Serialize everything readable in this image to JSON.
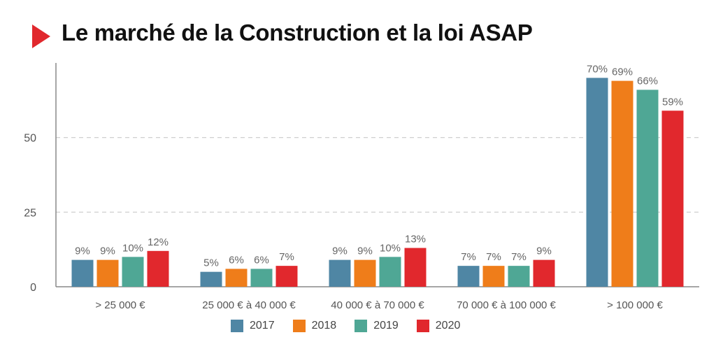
{
  "title": "Le marché de la Construction et la loi ASAP",
  "chart_data": {
    "type": "bar",
    "title": "Le marché de la Construction et la loi ASAP",
    "xlabel": "",
    "ylabel": "",
    "ylim": [
      0,
      75
    ],
    "yticks": [
      0,
      25,
      50
    ],
    "grid": true,
    "legend_position": "bottom",
    "categories": [
      "> 25 000 €",
      "25 000 € à 40 000 €",
      "40 000 € à 70 000 €",
      "70 000 € à 100 000 €",
      "> 100 000 €"
    ],
    "series": [
      {
        "name": "2017",
        "color": "#4f86a4",
        "values": [
          9,
          5,
          9,
          7,
          70
        ],
        "labels": [
          "9%",
          "5%",
          "9%",
          "7%",
          "70%"
        ]
      },
      {
        "name": "2018",
        "color": "#ef7d1a",
        "values": [
          9,
          6,
          9,
          7,
          69
        ],
        "labels": [
          "9%",
          "6%",
          "9%",
          "7%",
          "69%"
        ]
      },
      {
        "name": "2019",
        "color": "#4fa795",
        "values": [
          10,
          6,
          10,
          7,
          66
        ],
        "labels": [
          "10%",
          "6%",
          "10%",
          "7%",
          "66%"
        ]
      },
      {
        "name": "2020",
        "color": "#e1282d",
        "values": [
          12,
          7,
          13,
          9,
          59
        ],
        "labels": [
          "12%",
          "7%",
          "13%",
          "9%",
          "59%"
        ]
      }
    ]
  }
}
